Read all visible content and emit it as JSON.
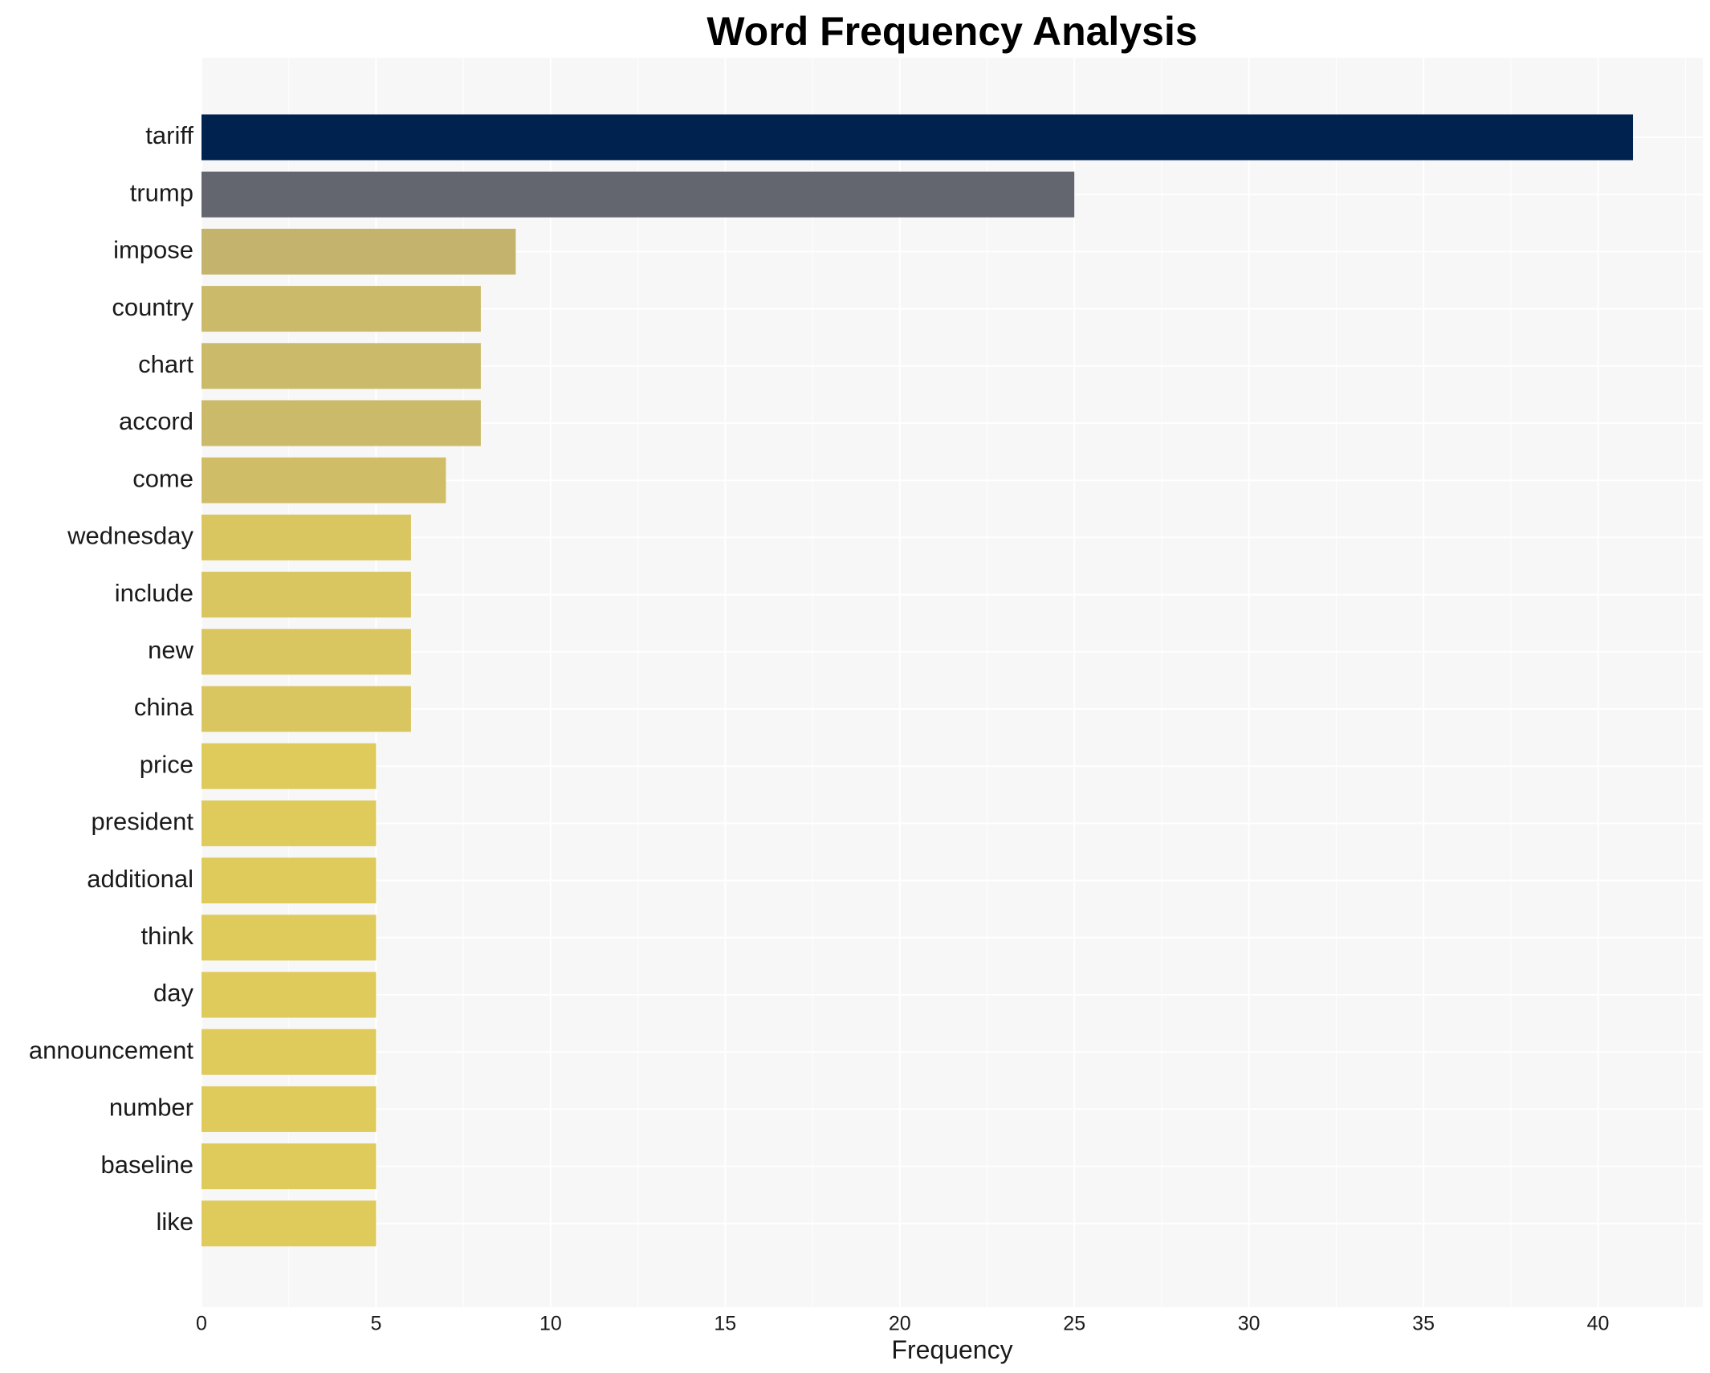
{
  "chart_data": {
    "type": "bar",
    "orientation": "horizontal",
    "title": "Word Frequency Analysis",
    "xlabel": "Frequency",
    "ylabel": "",
    "xlim": [
      0,
      43
    ],
    "xticks": [
      0,
      5,
      10,
      15,
      20,
      25,
      30,
      35,
      40
    ],
    "grid": true,
    "legend": "none",
    "categories": [
      "tariff",
      "trump",
      "impose",
      "country",
      "chart",
      "accord",
      "come",
      "wednesday",
      "include",
      "new",
      "china",
      "price",
      "president",
      "additional",
      "think",
      "day",
      "announcement",
      "number",
      "baseline",
      "like"
    ],
    "values": [
      41,
      25,
      9,
      8,
      8,
      8,
      7,
      6,
      6,
      6,
      6,
      5,
      5,
      5,
      5,
      5,
      5,
      5,
      5,
      5
    ],
    "colors": [
      "#00224e",
      "#64666f",
      "#c4b36c",
      "#cbba69",
      "#cbba69",
      "#cbba69",
      "#d0bd67",
      "#d9c661",
      "#d9c661",
      "#d9c661",
      "#d9c661",
      "#dfca5c",
      "#dfca5c",
      "#dfca5c",
      "#dfca5c",
      "#dfca5c",
      "#dfca5c",
      "#dfca5c",
      "#dfca5c",
      "#dfca5c"
    ],
    "background": "#f7f7f7",
    "grid_color": "#ffffff"
  }
}
